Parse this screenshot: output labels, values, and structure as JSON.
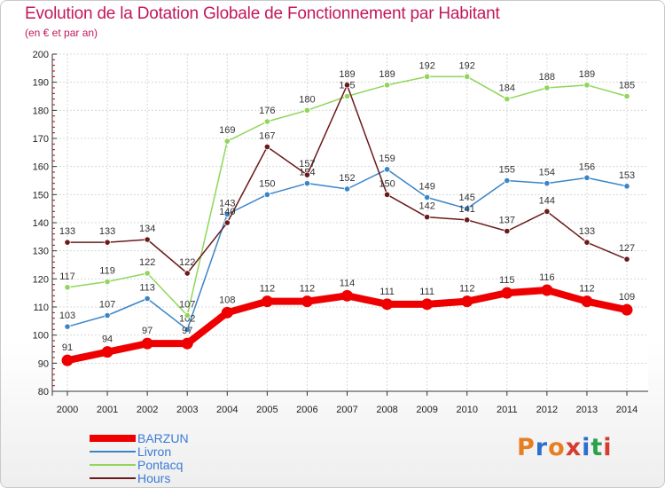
{
  "title": "Evolution de la Dotation Globale de Fonctionnement par Habitant",
  "subtitle": "(en € et par an)",
  "logo": {
    "text": "Proxiti",
    "letter_colors": [
      "#e67e22",
      "#2b6fce",
      "#e67e22",
      "#d63b2f",
      "#2b6fce",
      "#2aa14a",
      "#d63b2f"
    ]
  },
  "chart_data": {
    "type": "line",
    "title": "Evolution de la Dotation Globale de Fonctionnement par Habitant",
    "subtitle": "(en € et par an)",
    "xlabel": "",
    "ylabel": "",
    "x": [
      "2000",
      "2001",
      "2002",
      "2003",
      "2004",
      "2005",
      "2006",
      "2007",
      "2008",
      "2009",
      "2010",
      "2011",
      "2012",
      "2013",
      "2014"
    ],
    "ylim": [
      80,
      200
    ],
    "yticks": [
      "80",
      "90",
      "100",
      "110",
      "120",
      "130",
      "140",
      "150",
      "160",
      "170",
      "180",
      "190",
      "200"
    ],
    "grid": true,
    "legend_position": "bottom-left",
    "series": [
      {
        "name": "Livron",
        "color": "#3a85c8",
        "values": [
          103,
          107,
          113,
          102,
          143,
          150,
          154,
          152,
          159,
          149,
          145,
          155,
          154,
          156,
          153
        ]
      },
      {
        "name": "Pontacq",
        "color": "#8fd65a",
        "values": [
          117,
          119,
          122,
          107,
          169,
          176,
          180,
          185,
          189,
          192,
          192,
          184,
          188,
          189,
          185
        ]
      },
      {
        "name": "Hours",
        "color": "#6b1a1a",
        "values": [
          133,
          133,
          134,
          122,
          140,
          167,
          157,
          189,
          150,
          142,
          141,
          137,
          144,
          133,
          127
        ]
      },
      {
        "name": "BARZUN",
        "color": "#ee0000",
        "values": [
          91,
          94,
          97,
          97,
          108,
          112,
          112,
          114,
          111,
          111,
          112,
          115,
          116,
          112,
          109
        ]
      }
    ],
    "legend": [
      "BARZUN",
      "Livron",
      "Pontacq",
      "Hours"
    ]
  }
}
